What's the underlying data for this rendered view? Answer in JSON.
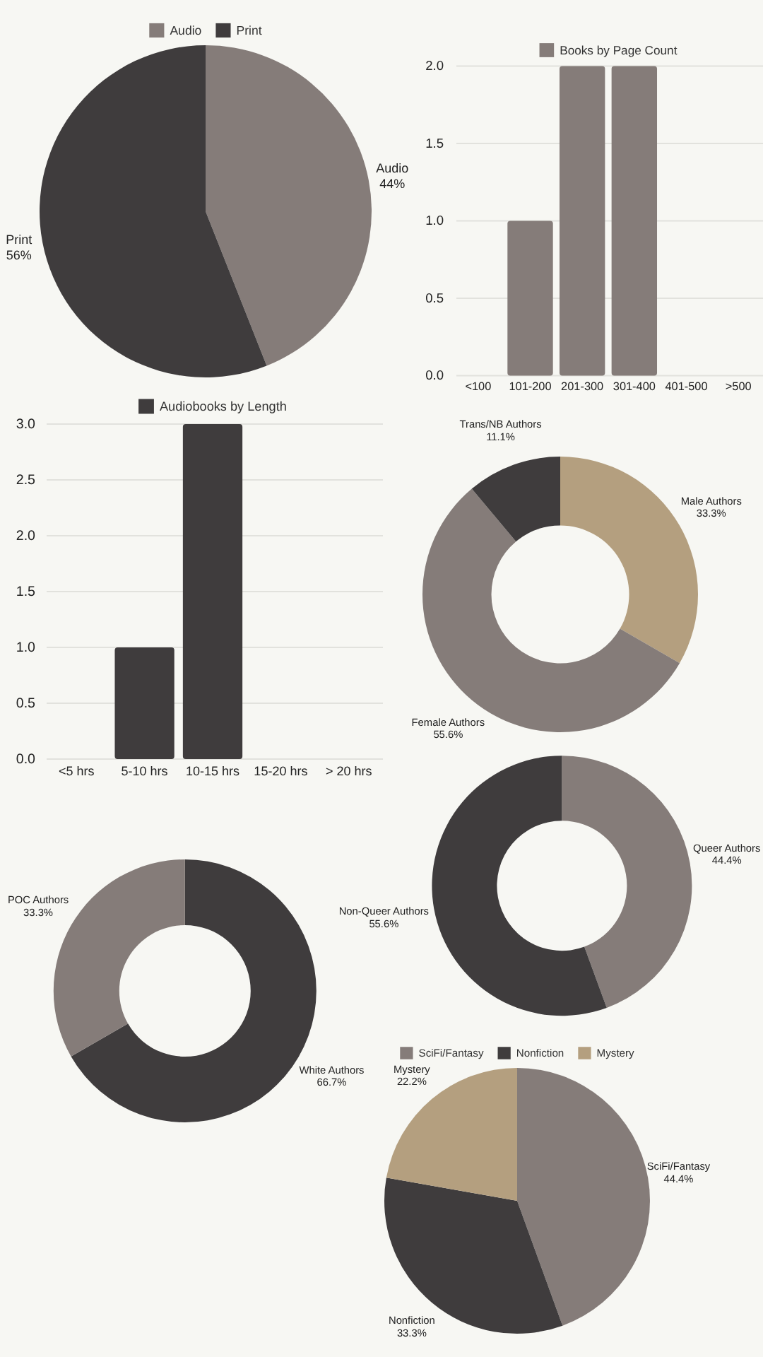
{
  "chart_data": [
    {
      "type": "pie",
      "categories": [
        "Audio",
        "Print"
      ],
      "values": [
        44,
        56
      ],
      "colors": [
        "#857c79",
        "#3f3c3d"
      ],
      "value_labels": [
        "44%",
        "56%"
      ],
      "legend": "top"
    },
    {
      "type": "bar",
      "categories": [
        "<100",
        "101-200",
        "201-300",
        "301-400",
        "401-500",
        ">500"
      ],
      "series": [
        {
          "name": "Books by Page Count",
          "color": "#857c79",
          "values": [
            0,
            1,
            2,
            2,
            0,
            0
          ]
        }
      ],
      "ylim": [
        0,
        2
      ],
      "yticks": [
        {
          "value": 0,
          "label": "0.0"
        },
        0.5,
        {
          "value": 1,
          "label": "1.0"
        },
        1.5,
        {
          "value": 2,
          "label": "2.0"
        }
      ],
      "grid": "y",
      "legend": "top"
    },
    {
      "type": "bar",
      "categories": [
        "<5 hrs",
        "5-10 hrs",
        "10-15 hrs",
        "15-20 hrs",
        "> 20 hrs"
      ],
      "series": [
        {
          "name": "Audiobooks by Length",
          "color": "#3f3c3d",
          "values": [
            0,
            1,
            3,
            0,
            0
          ]
        }
      ],
      "ylim": [
        0,
        3
      ],
      "yticks": [
        {
          "value": 0,
          "label": "0.0"
        },
        0.5,
        {
          "value": 1,
          "label": "1.0"
        },
        1.5,
        {
          "value": 2,
          "label": "2.0"
        },
        2.5,
        {
          "value": 3,
          "label": "3.0"
        }
      ],
      "grid": "y",
      "legend": "top"
    },
    {
      "type": "donut",
      "categories": [
        "Male Authors",
        "Female Authors",
        "Trans/NB Authors"
      ],
      "values": [
        33.3,
        55.6,
        11.1
      ],
      "colors": [
        "#b49f7f",
        "#857c79",
        "#3f3c3d"
      ],
      "value_labels": [
        "33.3%",
        "55.6%",
        "11.1%"
      ]
    },
    {
      "type": "donut",
      "categories": [
        "Queer Authors",
        "Non-Queer Authors"
      ],
      "values": [
        44.4,
        55.6
      ],
      "colors": [
        "#857c79",
        "#3f3c3d"
      ],
      "value_labels": [
        "44.4%",
        "55.6%"
      ]
    },
    {
      "type": "donut",
      "categories": [
        "White Authors",
        "POC Authors"
      ],
      "values": [
        66.7,
        33.3
      ],
      "colors": [
        "#3f3c3d",
        "#857c79"
      ],
      "value_labels": [
        "66.7%",
        "33.3%"
      ]
    },
    {
      "type": "pie",
      "categories": [
        "SciFi/Fantasy",
        "Nonfiction",
        "Mystery"
      ],
      "values": [
        44.4,
        33.3,
        22.2
      ],
      "colors": [
        "#857c79",
        "#3f3c3d",
        "#b49f7f"
      ],
      "value_labels": [
        "44.4%",
        "33.3%",
        "22.2%"
      ],
      "legend": "top"
    }
  ]
}
